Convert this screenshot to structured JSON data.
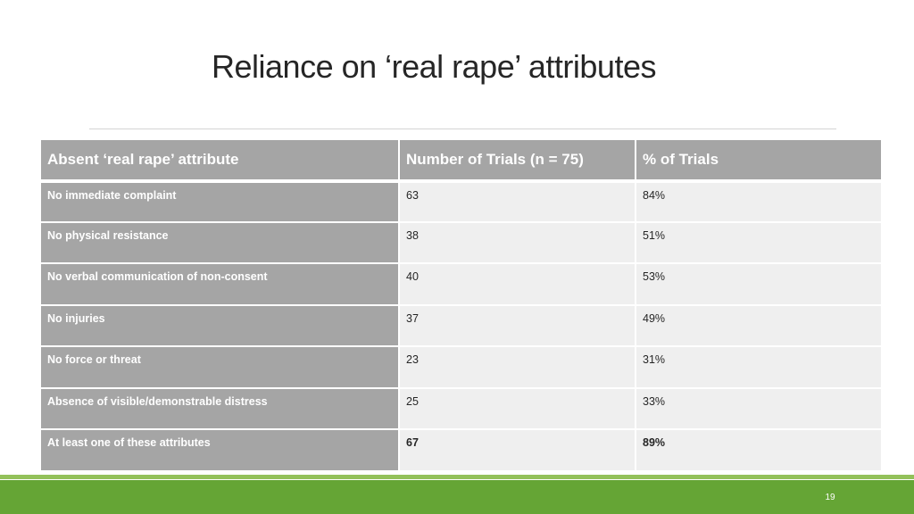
{
  "slide": {
    "title": "Reliance on ‘real rape’ attributes",
    "page_number": "19"
  },
  "table": {
    "headers": [
      "Absent ‘real rape’ attribute",
      "Number of Trials (n = 75)",
      "% of Trials"
    ],
    "rows": [
      {
        "attribute": "No immediate complaint",
        "trials": "63",
        "percent": "84%"
      },
      {
        "attribute": "No physical resistance",
        "trials": "38",
        "percent": "51%"
      },
      {
        "attribute": "No verbal communication of non-consent",
        "trials": "40",
        "percent": "53%"
      },
      {
        "attribute": "No injuries",
        "trials": "37",
        "percent": "49%"
      },
      {
        "attribute": "No force or threat",
        "trials": "23",
        "percent": "31%"
      },
      {
        "attribute": "Absence of visible/demonstrable distress",
        "trials": "25",
        "percent": "33%"
      },
      {
        "attribute": "At least one of these attributes",
        "trials": "67",
        "percent": "89%"
      }
    ]
  },
  "colors": {
    "header_fill": "#a5a5a5",
    "value_fill": "#efefef",
    "footer_green": "#65a535",
    "footer_light_green": "#93c15a"
  }
}
